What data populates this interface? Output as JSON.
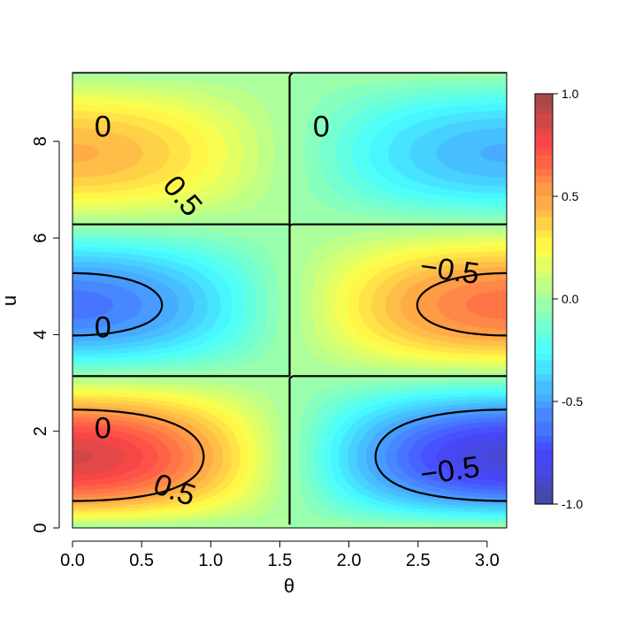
{
  "chart_data": {
    "type": "heatmap",
    "function": "cos(theta) * sin(u) * exp(-0.1*u) — filled contour of the plotted surface (approximate)",
    "xlabel": "θ",
    "ylabel": "u",
    "xlim": [
      0,
      3.14159
    ],
    "ylim": [
      0,
      9.42478
    ],
    "x_ticks": [
      0.0,
      0.5,
      1.0,
      1.5,
      2.0,
      2.5,
      3.0
    ],
    "x_tick_labels": [
      "0.0",
      "0.5",
      "1.0",
      "1.5",
      "2.0",
      "2.5",
      "3.0"
    ],
    "y_ticks": [
      0,
      2,
      4,
      6,
      8
    ],
    "y_tick_labels": [
      "0",
      "2",
      "4",
      "6",
      "8"
    ],
    "colorbar": {
      "range": [
        -1.0,
        1.0
      ],
      "ticks": [
        1.0,
        0.5,
        0.0,
        -0.5,
        -1.0
      ],
      "tick_labels": [
        "1.0",
        "0.5",
        "0.0",
        "-0.5",
        "-1.0"
      ],
      "palette": [
        "#00007f",
        "#0000ff",
        "#007fff",
        "#00ffff",
        "#7fff7f",
        "#ffff00",
        "#ff7f00",
        "#ff0000",
        "#7f0000"
      ]
    },
    "contour_levels": [
      -0.5,
      0,
      0.5
    ],
    "contour_labels": [
      {
        "text": "0",
        "x": 0.22,
        "y": 8.32
      },
      {
        "text": "0",
        "x": 1.8,
        "y": 8.32
      },
      {
        "text": "0",
        "x": 0.22,
        "y": 4.16
      },
      {
        "text": "0",
        "x": 0.22,
        "y": 2.08
      },
      {
        "text": "0.5",
        "x": 0.8,
        "y": 6.88,
        "angle": 50
      },
      {
        "text": "0.5",
        "x": 0.74,
        "y": 0.8,
        "angle": 20
      },
      {
        "text": "−0.5",
        "x": 2.73,
        "y": 5.35,
        "angle": 8
      },
      {
        "text": "−0.5",
        "x": 2.73,
        "y": 1.2,
        "angle": -8
      }
    ]
  }
}
